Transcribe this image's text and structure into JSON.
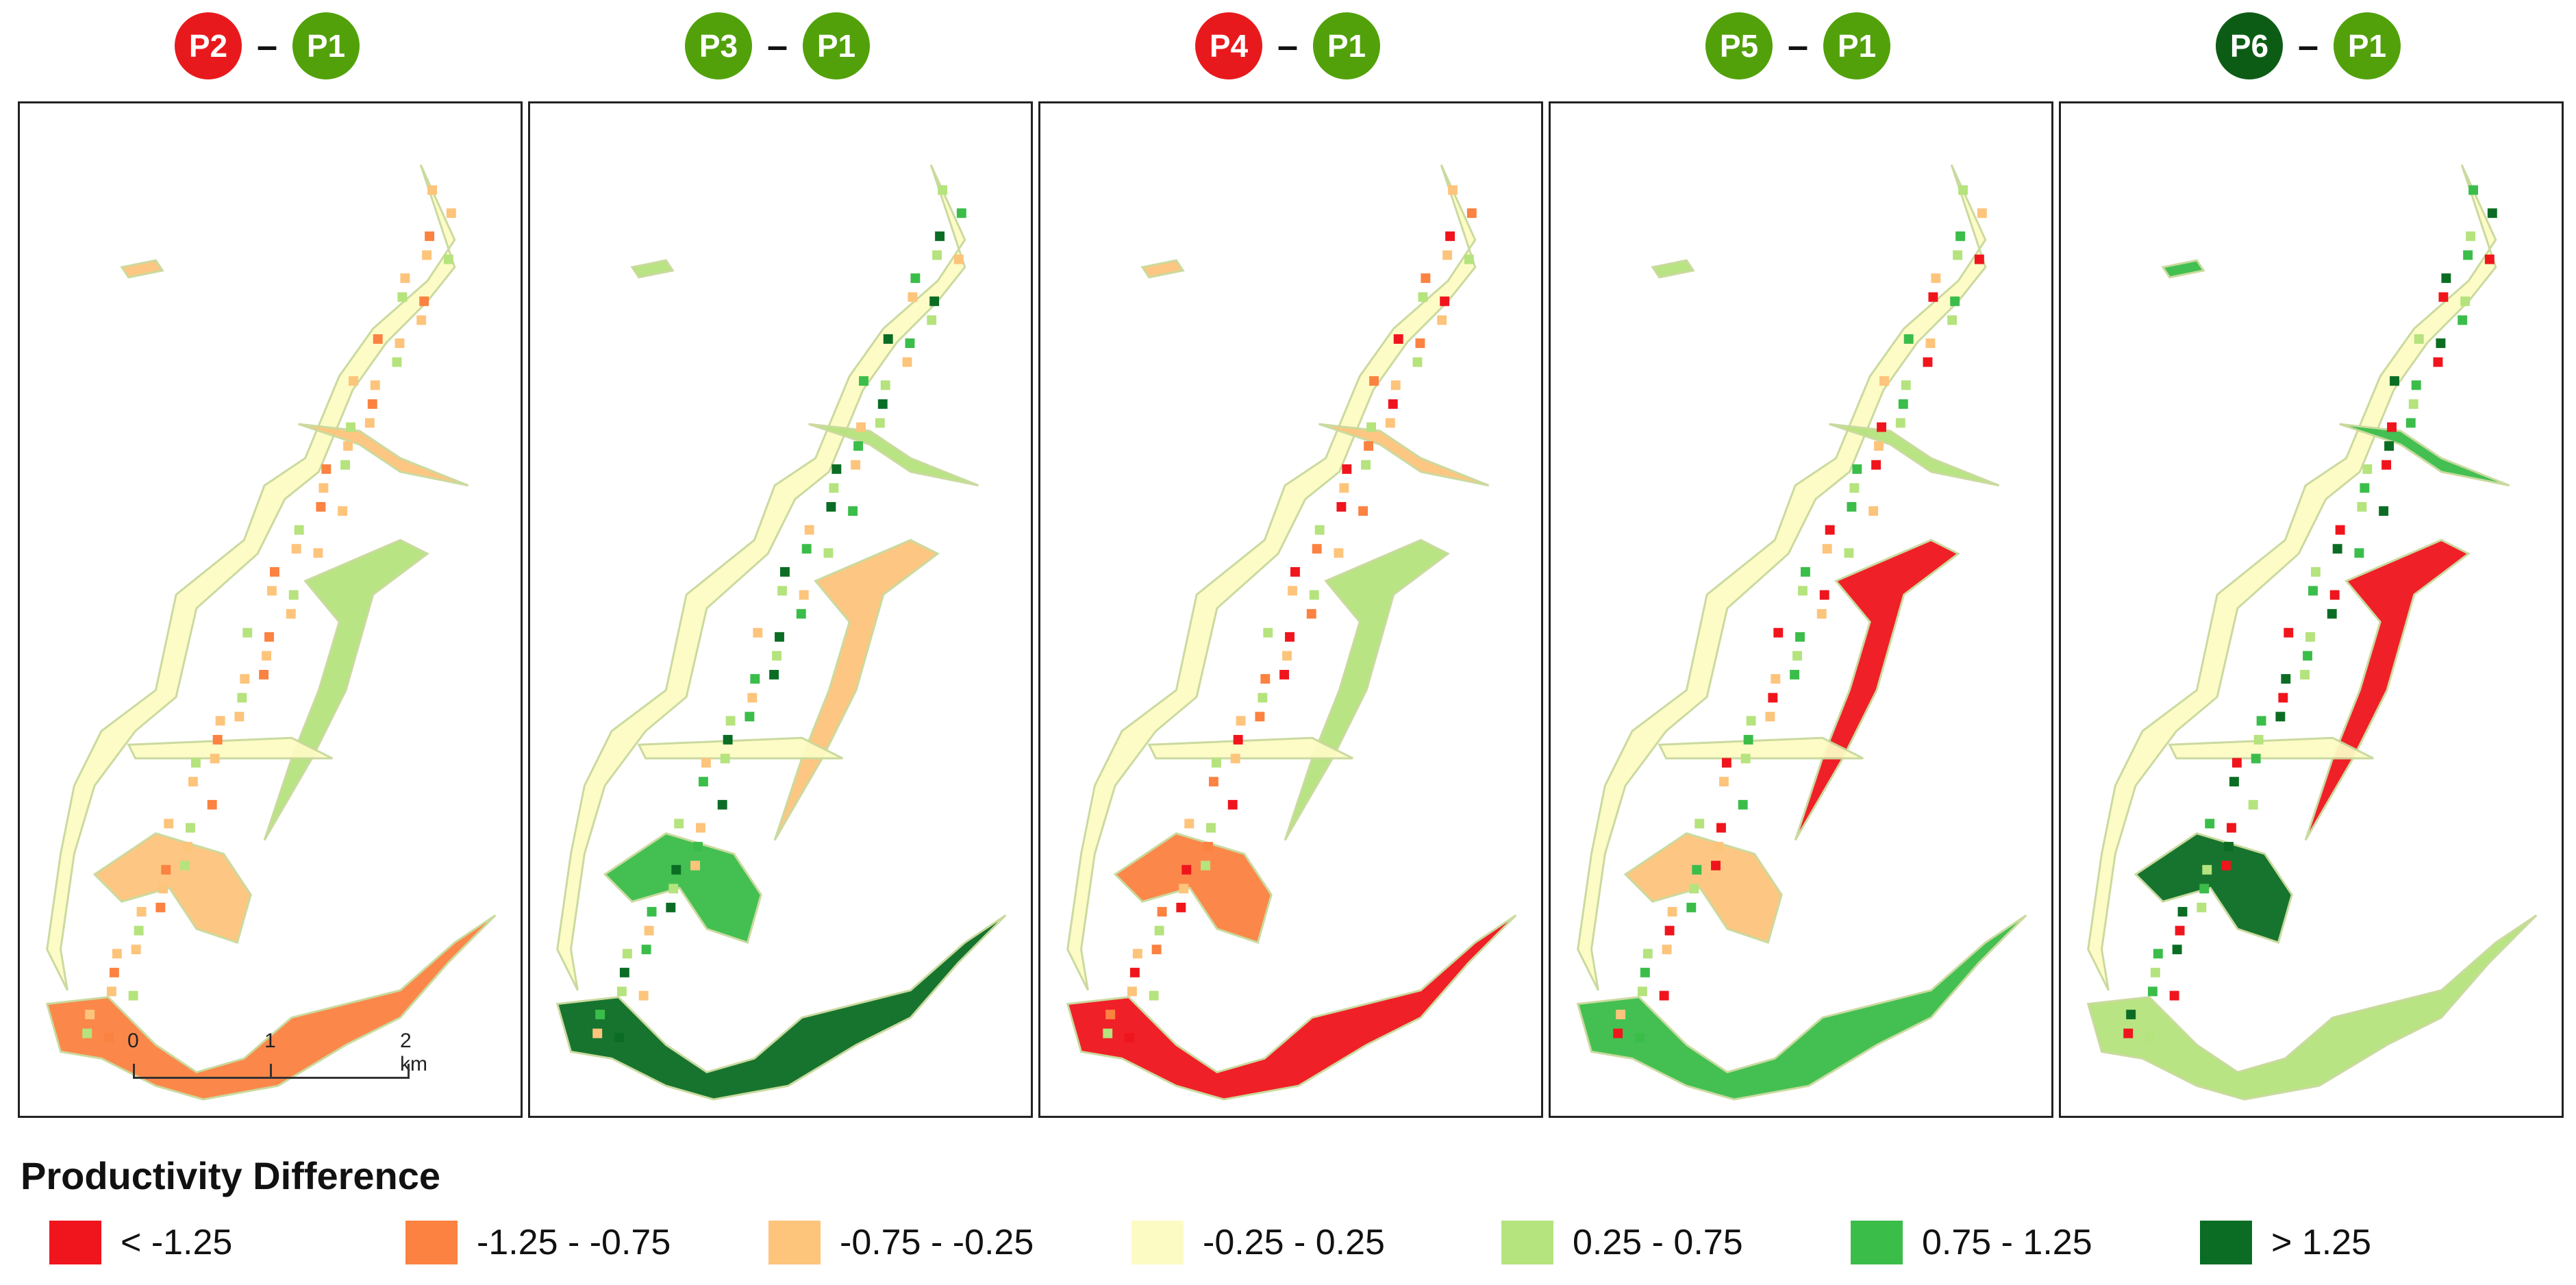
{
  "panels": [
    {
      "left": "P2",
      "left_color": "#e8191d",
      "right": "P1",
      "right_color": "#52a10a"
    },
    {
      "left": "P3",
      "left_color": "#52a10a",
      "right": "P1",
      "right_color": "#52a10a"
    },
    {
      "left": "P4",
      "left_color": "#e8191d",
      "right": "P1",
      "right_color": "#52a10a"
    },
    {
      "left": "P5",
      "left_color": "#52a10a",
      "right": "P1",
      "right_color": "#52a10a"
    },
    {
      "left": "P6",
      "left_color": "#0d5c16",
      "right": "P1",
      "right_color": "#52a10a"
    }
  ],
  "separator": "–",
  "scale": {
    "labels": [
      "0",
      "1",
      "2 km"
    ]
  },
  "legend": {
    "title": "Productivity Difference",
    "items": [
      {
        "label": "< -1.25",
        "color": "#f0151d"
      },
      {
        "label": "-1.25 - -0.75",
        "color": "#fb8241"
      },
      {
        "label": "-0.75 - -0.25",
        "color": "#fdc47c"
      },
      {
        "label": "-0.25 - 0.25",
        "color": "#fdfbc4"
      },
      {
        "label": "0.25 - 0.75",
        "color": "#b5e37d"
      },
      {
        "label": "0.75 - 1.25",
        "color": "#3bbd4a"
      },
      {
        "label": "> 1.25",
        "color": "#0b6d24"
      }
    ]
  }
}
